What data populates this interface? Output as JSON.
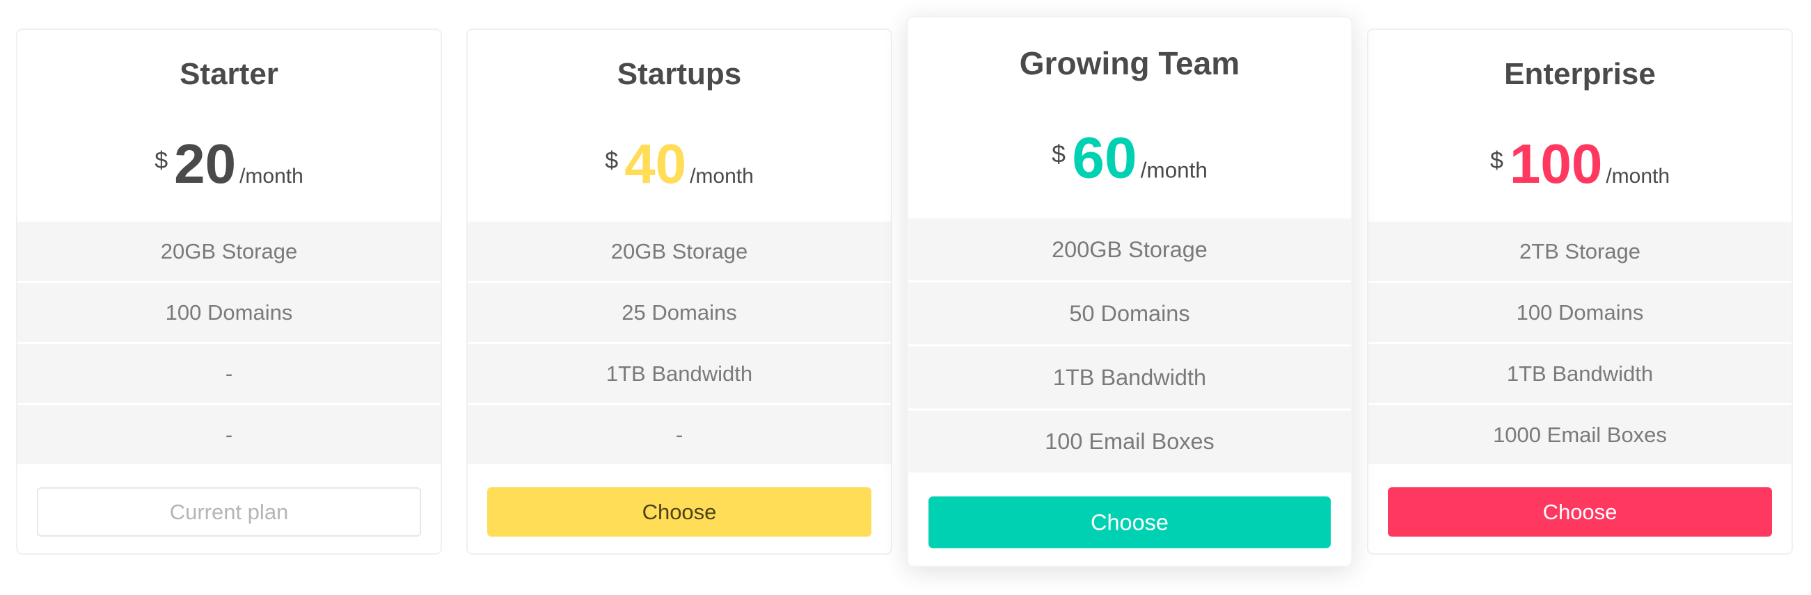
{
  "pricing": {
    "plans": [
      {
        "name": "Starter",
        "currency": "$",
        "amount": "20",
        "period": "/month",
        "price_color": "#4a4a4a",
        "features": [
          "20GB Storage",
          "100 Domains",
          "-",
          "-"
        ],
        "button": {
          "label": "Current plan",
          "type": "outline"
        },
        "featured": false
      },
      {
        "name": "Startups",
        "currency": "$",
        "amount": "40",
        "period": "/month",
        "price_color": "#ffdd57",
        "features": [
          "20GB Storage",
          "25 Domains",
          "1TB Bandwidth",
          "-"
        ],
        "button": {
          "label": "Choose",
          "type": "warning"
        },
        "featured": false
      },
      {
        "name": "Growing Team",
        "currency": "$",
        "amount": "60",
        "period": "/month",
        "price_color": "#00d1b2",
        "features": [
          "200GB Storage",
          "50 Domains",
          "1TB Bandwidth",
          "100 Email Boxes"
        ],
        "button": {
          "label": "Choose",
          "type": "primary"
        },
        "featured": true
      },
      {
        "name": "Enterprise",
        "currency": "$",
        "amount": "100",
        "period": "/month",
        "price_color": "#ff3860",
        "features": [
          "2TB Storage",
          "100 Domains",
          "1TB Bandwidth",
          "1000 Email Boxes"
        ],
        "button": {
          "label": "Choose",
          "type": "danger"
        },
        "featured": false
      }
    ]
  },
  "theme": {
    "warning": "#ffdd57",
    "primary": "#00d1b2",
    "danger": "#ff3860",
    "text-strong": "#4a4a4a",
    "text-muted": "#7a7a7a",
    "text-light": "#b5b5b5",
    "row-bg": "#f5f5f5",
    "card-border": "#f0f0f0",
    "page-bg": "#ffffff"
  }
}
